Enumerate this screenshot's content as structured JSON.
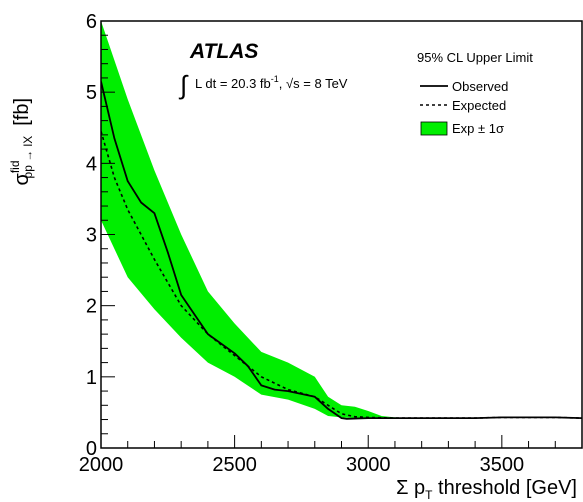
{
  "chart_data": {
    "type": "area",
    "title": "",
    "atlas_label": "ATLAS",
    "lumi_text": "L dt = 20.3 fb",
    "lumi_sup": "-1",
    "energy_text": ", √s = 8 TeV",
    "legend_header": "95% CL Upper Limit",
    "xlabel": {
      "sigma": "Σ p",
      "sub": "T",
      "rest": " threshold  [GeV]"
    },
    "ylabel": {
      "sigma": "σ",
      "sup": "fid",
      "sub": "pp → lX",
      "unit": "[fb]"
    },
    "xlim": [
      2000,
      3800
    ],
    "ylim": [
      0,
      6
    ],
    "x_ticks": [
      2000,
      2500,
      3000,
      3500
    ],
    "x_tick_labels": [
      "2000",
      "2500",
      "3000",
      "3500"
    ],
    "y_ticks": [
      0,
      1,
      2,
      3,
      4,
      5,
      6
    ],
    "y_tick_labels": [
      "0",
      "1",
      "2",
      "3",
      "4",
      "5",
      "6"
    ],
    "legend_placement": "top-right",
    "colors": {
      "band": "#00ee00",
      "lines": "#000000"
    },
    "series": [
      {
        "name": "Observed",
        "style": "solid",
        "x": [
          2000,
          2050,
          2100,
          2150,
          2200,
          2250,
          2300,
          2400,
          2500,
          2550,
          2600,
          2650,
          2700,
          2800,
          2850,
          2900,
          2920,
          3000,
          3100,
          3200,
          3300,
          3400,
          3500,
          3600,
          3700,
          3800
        ],
        "y": [
          5.15,
          4.35,
          3.75,
          3.45,
          3.3,
          2.75,
          2.15,
          1.6,
          1.33,
          1.15,
          0.88,
          0.82,
          0.8,
          0.72,
          0.55,
          0.42,
          0.41,
          0.42,
          0.42,
          0.42,
          0.42,
          0.42,
          0.43,
          0.43,
          0.43,
          0.42
        ]
      },
      {
        "name": "Expected",
        "style": "dashed",
        "x": [
          2000,
          2050,
          2100,
          2200,
          2300,
          2400,
          2500,
          2600,
          2700,
          2800,
          2850,
          2900,
          2950,
          3000,
          3100,
          3200,
          3300,
          3400,
          3500,
          3600,
          3700,
          3800
        ],
        "y": [
          4.45,
          3.8,
          3.35,
          2.65,
          2.0,
          1.6,
          1.3,
          1.0,
          0.82,
          0.72,
          0.6,
          0.48,
          0.44,
          0.43,
          0.42,
          0.42,
          0.42,
          0.42,
          0.43,
          0.43,
          0.43,
          0.42
        ]
      }
    ],
    "band": {
      "name": "Exp ± 1σ",
      "x": [
        2000,
        2100,
        2200,
        2300,
        2400,
        2500,
        2600,
        2700,
        2800,
        2850,
        2900,
        2950,
        3000,
        3050,
        3100,
        3200,
        3300,
        3400,
        3500,
        3600,
        3700,
        3800
      ],
      "upper": [
        6.0,
        4.9,
        3.9,
        3.0,
        2.2,
        1.75,
        1.35,
        1.2,
        1.0,
        0.72,
        0.6,
        0.58,
        0.52,
        0.45,
        0.43,
        0.42,
        0.42,
        0.42,
        0.43,
        0.43,
        0.43,
        0.42
      ],
      "lower": [
        3.2,
        2.4,
        1.95,
        1.55,
        1.2,
        1.0,
        0.75,
        0.68,
        0.55,
        0.45,
        0.43,
        0.42,
        0.41,
        0.41,
        0.41,
        0.42,
        0.42,
        0.42,
        0.43,
        0.43,
        0.43,
        0.42
      ]
    }
  }
}
